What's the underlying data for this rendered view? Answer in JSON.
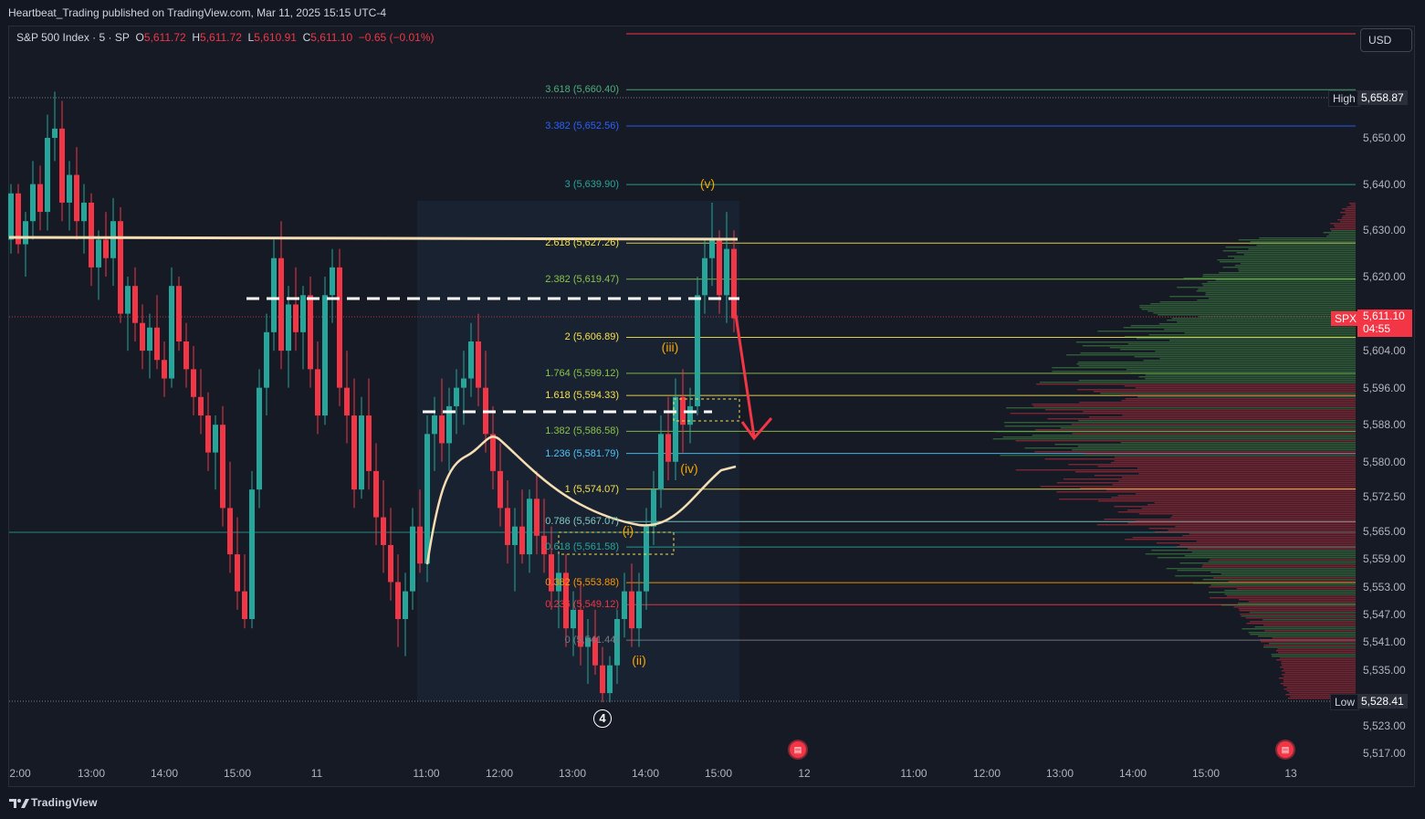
{
  "header": {
    "publisher_line": "Heartbeat_Trading published on TradingView.com, Mar 11, 2025 15:15 UTC-4"
  },
  "legend": {
    "symbol": "S&P 500 Index · 5 · SP",
    "o_label": "O",
    "o_value": "5,611.72",
    "h_label": "H",
    "h_value": "5,611.72",
    "l_label": "L",
    "l_value": "5,610.91",
    "c_label": "C",
    "c_value": "5,611.10",
    "change": "−0.65 (−0.01%)"
  },
  "currency_button": "USD",
  "price_axis": {
    "ticks": [
      "5,650.00",
      "5,640.00",
      "5,630.00",
      "5,620.00",
      "5,604.00",
      "5,596.00",
      "5,588.00",
      "5,580.00",
      "5,572.50",
      "5,565.00",
      "5,559.00",
      "5,553.00",
      "5,547.00",
      "5,541.00",
      "5,535.00",
      "5,523.00",
      "5,517.00"
    ],
    "high_label": "High",
    "high_value": "5,658.87",
    "low_label": "Low",
    "low_value": "5,528.41",
    "symbol_tag": "SPX",
    "last_price": "5,611.10",
    "countdown": "04:55"
  },
  "time_axis": {
    "ticks": [
      "2:00",
      "13:00",
      "14:00",
      "15:00",
      "11",
      "11:00",
      "12:00",
      "13:00",
      "14:00",
      "15:00",
      "12",
      "11:00",
      "12:00",
      "13:00",
      "14:00",
      "15:00",
      "13"
    ]
  },
  "fib_levels": [
    {
      "label": "3.618 (5,660.40)",
      "color": "#4caf7a"
    },
    {
      "label": "3.382 (5,652.56)",
      "color": "#2962ff"
    },
    {
      "label": "3 (5,639.90)",
      "color": "#26a69a"
    },
    {
      "label": "2.618 (5,627.26)",
      "color": "#f5e050"
    },
    {
      "label": "2.382 (5,619.47)",
      "color": "#8bc34a"
    },
    {
      "label": "2 (5,606.89)",
      "color": "#f5e050"
    },
    {
      "label": "1.764 (5,599.12)",
      "color": "#8bc34a"
    },
    {
      "label": "1.618 (5,594.33)",
      "color": "#f5e050"
    },
    {
      "label": "1.382 (5,586.58)",
      "color": "#8bc34a"
    },
    {
      "label": "1.236 (5,581.79)",
      "color": "#4fc3f7"
    },
    {
      "label": "1 (5,574.07)",
      "color": "#f5e050"
    },
    {
      "label": "0.786 (5,567.07)",
      "color": "#80cbc4"
    },
    {
      "label": "0.618 (5,561.58)",
      "color": "#26a69a"
    },
    {
      "label": "0.382 (5,553.88)",
      "color": "#ff9800"
    },
    {
      "label": "0.236 (5,549.12)",
      "color": "#f23645"
    },
    {
      "label": "0 (5,541.44)",
      "color": "#787b86"
    }
  ],
  "wave_labels": {
    "v": "(v)",
    "iii": "(iii)",
    "iv": "(iv)",
    "i": "(i)",
    "ii": "(ii)",
    "four": "4"
  },
  "event_flags": [
    "us-flag",
    "us-flag"
  ],
  "colors": {
    "up": "#26a69a",
    "down": "#f23645",
    "background": "#161a25",
    "resistance": "#f5deb3",
    "arrow": "#f23645",
    "wave": "#f7a600"
  },
  "footer": {
    "brand": "TradingView"
  }
}
